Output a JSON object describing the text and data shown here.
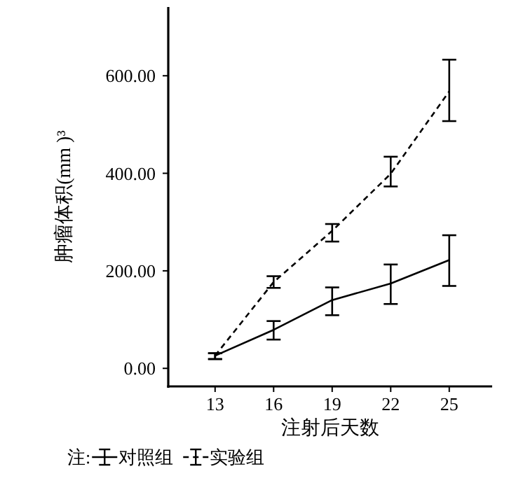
{
  "chart_data": {
    "type": "line",
    "xlabel": "注射后天数",
    "ylabel": "肿瘤体积(mm )³",
    "legend_title": "注:",
    "legend": "bottom left",
    "x": [
      13,
      16,
      19,
      22,
      25
    ],
    "xlim": [
      10.6,
      27.2
    ],
    "xticks": [
      13,
      16,
      19,
      22,
      25
    ],
    "ylim": [
      -37,
      741
    ],
    "yticks": [
      {
        "value": 0,
        "label": "0.00"
      },
      {
        "value": 200,
        "label": "200.00"
      },
      {
        "value": 400,
        "label": "400.00"
      },
      {
        "value": 600,
        "label": "600.00"
      }
    ],
    "grid": false,
    "marker": "none",
    "series": [
      {
        "name": "对照组",
        "color": "#000000",
        "line_style": "solid",
        "values": [
          26,
          79,
          140,
          174,
          222
        ],
        "errors": [
          [
            19,
            31
          ],
          [
            59,
            97
          ],
          [
            109,
            166
          ],
          [
            132,
            213
          ],
          [
            169,
            273
          ]
        ]
      },
      {
        "name": "实验组",
        "color": "#000000",
        "line_style": "dashed",
        "values": [
          26,
          177,
          282,
          399,
          568
        ],
        "errors": [
          [
            19,
            31
          ],
          [
            165,
            189
          ],
          [
            260,
            296
          ],
          [
            373,
            434
          ],
          [
            507,
            633
          ]
        ]
      }
    ]
  }
}
